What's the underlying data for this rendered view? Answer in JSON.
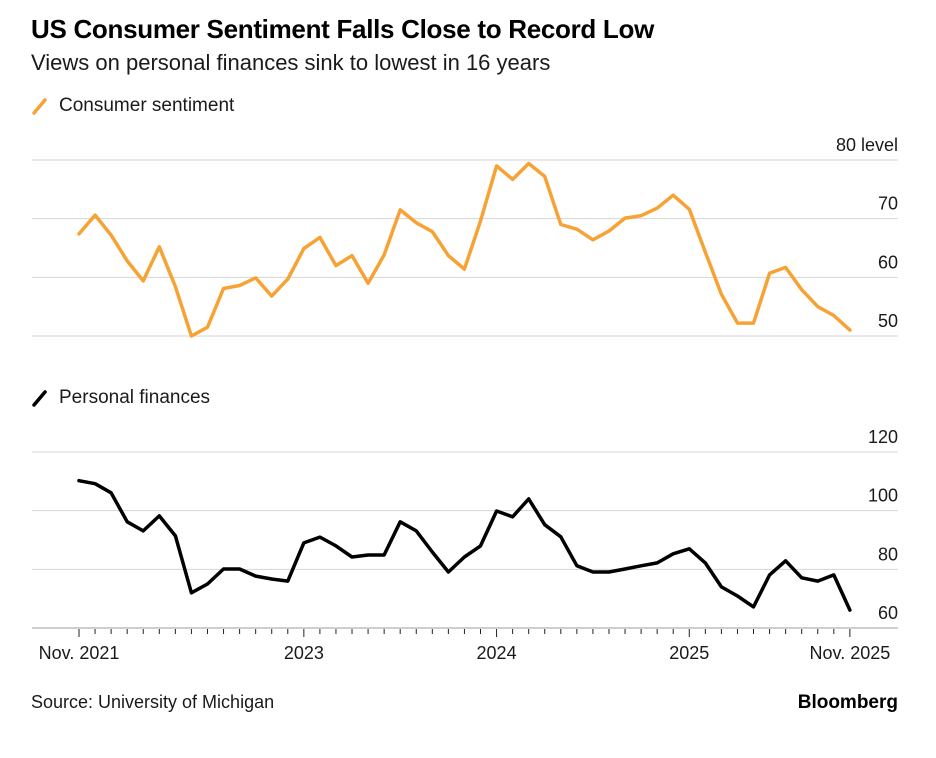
{
  "header": {
    "title": "US Consumer Sentiment Falls Close to Record Low",
    "subtitle": "Views on personal finances sink to lowest in 16 years"
  },
  "footer": {
    "source": "Source: University of Michigan",
    "brand": "Bloomberg"
  },
  "colors": {
    "sentiment": "#F7A234",
    "finances": "#000000",
    "grid": "#d4d4d4",
    "axis": "#bdbdbd"
  },
  "chart_data": [
    {
      "type": "line",
      "title": "Consumer sentiment",
      "legend": "Consumer sentiment",
      "legend_position": "top-left",
      "ylabel": "level",
      "y_axis_side": "right",
      "ylim": [
        50,
        80
      ],
      "yticks": [
        50,
        60,
        70,
        80
      ],
      "ytick_labels": [
        "50",
        "60",
        "70",
        "80 level"
      ],
      "grid": true,
      "x_start": "2021-11",
      "x_end": "2025-11",
      "x_frequency": "monthly",
      "series": [
        {
          "name": "Consumer sentiment",
          "color": "#F7A234",
          "values": [
            67.4,
            70.6,
            67.2,
            62.8,
            59.4,
            65.2,
            58.4,
            50.0,
            51.5,
            58.1,
            58.6,
            59.9,
            56.8,
            59.7,
            64.9,
            66.8,
            62.0,
            63.7,
            59.0,
            63.8,
            71.5,
            69.3,
            67.8,
            63.7,
            61.4,
            69.6,
            79.0,
            76.7,
            79.4,
            77.2,
            69.0,
            68.2,
            66.4,
            67.9,
            70.1,
            70.5,
            71.8,
            74.0,
            71.6,
            64.3,
            57.1,
            52.2,
            52.2,
            60.7,
            61.7,
            57.9,
            55.0,
            53.5,
            51.0
          ]
        }
      ]
    },
    {
      "type": "line",
      "title": "Personal finances",
      "legend": "Personal finances",
      "legend_position": "top-left",
      "y_axis_side": "right",
      "ylim": [
        60,
        120
      ],
      "yticks": [
        60,
        80,
        100,
        120
      ],
      "ytick_labels": [
        "60",
        "80",
        "100",
        "120"
      ],
      "grid": true,
      "x_start": "2021-11",
      "x_end": "2025-11",
      "x_frequency": "monthly",
      "xtick_labels": [
        {
          "month_index": 0,
          "label": "Nov. 2021"
        },
        {
          "month_index": 14,
          "label": "2023"
        },
        {
          "month_index": 26,
          "label": "2024"
        },
        {
          "month_index": 38,
          "label": "2025"
        },
        {
          "month_index": 48,
          "label": "Nov. 2025"
        }
      ],
      "series": [
        {
          "name": "Personal finances",
          "color": "#000000",
          "values": [
            110.2,
            109.2,
            106.1,
            96.2,
            93.1,
            98.2,
            91.4,
            72.0,
            75.0,
            80.1,
            80.1,
            77.7,
            76.7,
            76.0,
            89.0,
            91.0,
            88.0,
            84.2,
            84.9,
            84.9,
            96.2,
            93.1,
            85.9,
            79.1,
            84.2,
            88.0,
            99.9,
            97.9,
            104.0,
            95.2,
            91.1,
            81.2,
            79.1,
            79.1,
            80.1,
            81.2,
            82.2,
            85.3,
            87.0,
            82.2,
            74.0,
            70.9,
            67.2,
            78.1,
            82.9,
            77.1,
            76.0,
            78.1,
            66.1
          ]
        }
      ]
    }
  ]
}
